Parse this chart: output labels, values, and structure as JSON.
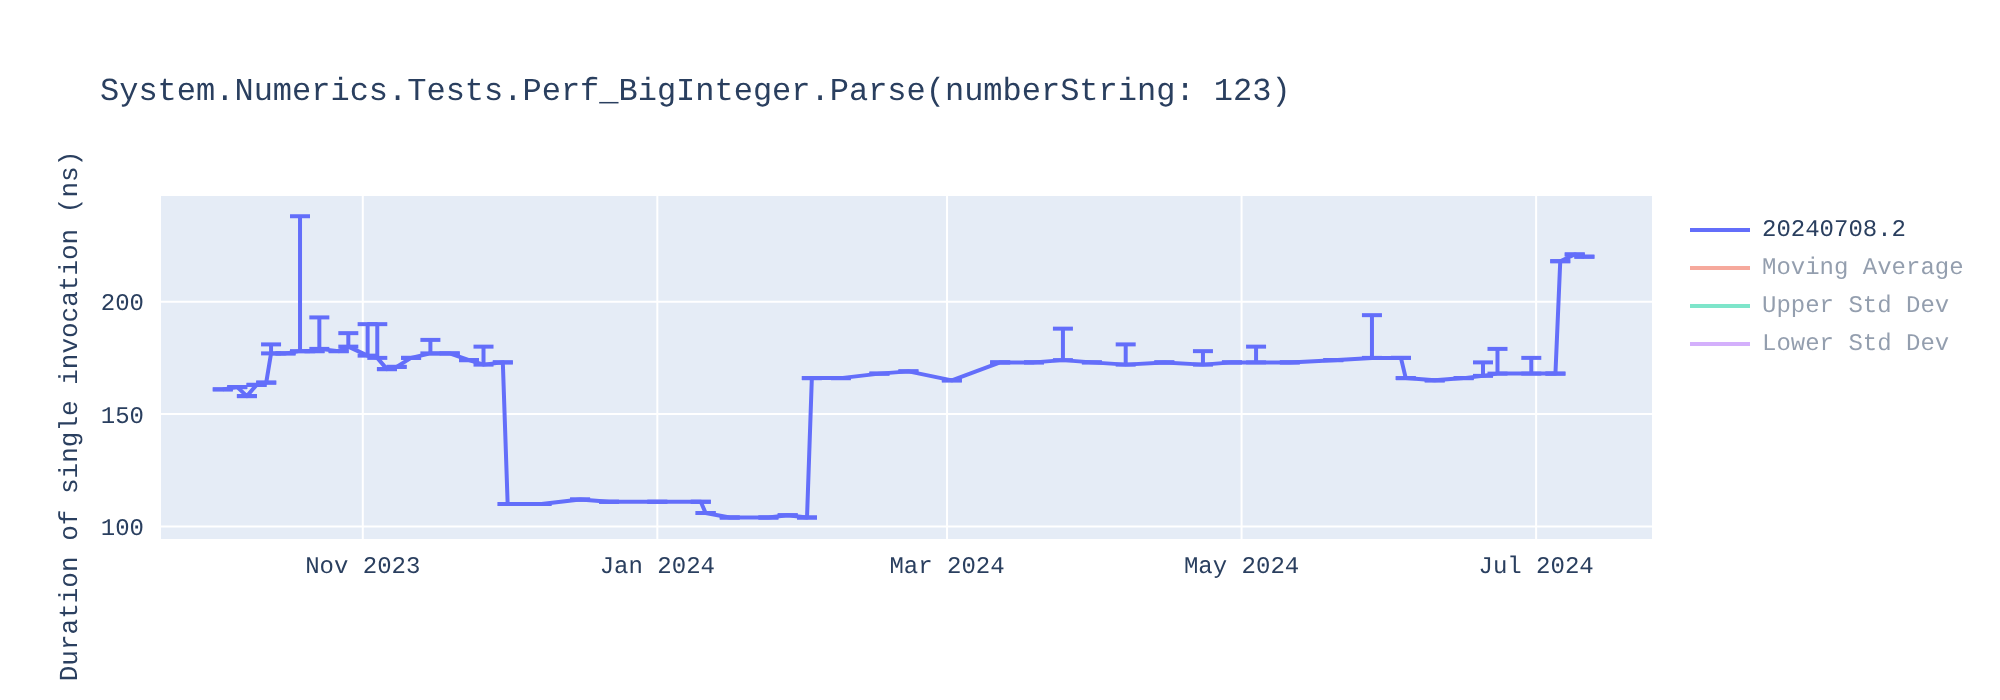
{
  "chart_data": {
    "type": "line",
    "title": "System.Numerics.Tests.Perf_BigInteger.Parse(numberString: 123)",
    "ylabel": "Duration of single invocation (ns)",
    "x": [
      "2023-10-03",
      "2023-10-06",
      "2023-10-08",
      "2023-10-10",
      "2023-10-12",
      "2023-10-13",
      "2023-10-16",
      "2023-10-19",
      "2023-10-22",
      "2023-10-23",
      "2023-10-27",
      "2023-10-29",
      "2023-11-02",
      "2023-11-04",
      "2023-11-06",
      "2023-11-08",
      "2023-11-11",
      "2023-11-15",
      "2023-11-19",
      "2023-11-23",
      "2023-11-26",
      "2023-11-30",
      "2023-12-01",
      "2023-12-08",
      "2023-12-16",
      "2023-12-22",
      "2024-01-01",
      "2024-01-10",
      "2024-01-11",
      "2024-01-16",
      "2024-01-24",
      "2024-01-28",
      "2024-02-01",
      "2024-02-02",
      "2024-02-08",
      "2024-02-16",
      "2024-02-22",
      "2024-03-02",
      "2024-03-12",
      "2024-03-19",
      "2024-03-25",
      "2024-03-31",
      "2024-04-07",
      "2024-04-15",
      "2024-04-23",
      "2024-04-29",
      "2024-05-04",
      "2024-05-11",
      "2024-05-20",
      "2024-05-28",
      "2024-06-03",
      "2024-06-04",
      "2024-06-10",
      "2024-06-16",
      "2024-06-20",
      "2024-06-23",
      "2024-06-30",
      "2024-07-05",
      "2024-07-06",
      "2024-07-09",
      "2024-07-11"
    ],
    "series": [
      {
        "name": "20240708.2",
        "color": "#636efa",
        "values": [
          161,
          162,
          158,
          163,
          164,
          177,
          177,
          178,
          178,
          179,
          178,
          180,
          176,
          175,
          170,
          171,
          175,
          177,
          177,
          174,
          172,
          173,
          110,
          110,
          112,
          111,
          111,
          111,
          106,
          104,
          104,
          105,
          104,
          166,
          166,
          168,
          169,
          165,
          173,
          173,
          174,
          173,
          172,
          173,
          172,
          173,
          173,
          173,
          174,
          175,
          175,
          166,
          165,
          166,
          167,
          168,
          168,
          168,
          218,
          221,
          220
        ],
        "errors": [
          null,
          null,
          null,
          null,
          null,
          [
            177,
            181
          ],
          null,
          [
            178,
            238
          ],
          null,
          [
            179,
            193
          ],
          null,
          [
            180,
            186
          ],
          [
            176,
            190
          ],
          [
            175,
            190
          ],
          null,
          null,
          null,
          [
            177,
            183
          ],
          null,
          null,
          [
            172,
            180
          ],
          null,
          null,
          null,
          null,
          null,
          null,
          null,
          null,
          null,
          null,
          null,
          null,
          null,
          null,
          null,
          null,
          null,
          null,
          null,
          [
            174,
            188
          ],
          null,
          [
            172,
            181
          ],
          null,
          [
            172,
            178
          ],
          null,
          [
            173,
            180
          ],
          null,
          null,
          [
            175,
            194
          ],
          null,
          null,
          null,
          null,
          [
            167,
            173
          ],
          [
            168,
            179
          ],
          [
            168,
            175
          ],
          null,
          null,
          null,
          null
        ]
      },
      {
        "name": "Moving Average",
        "color": "#ef553b",
        "values": [
          null,
          null,
          null,
          null,
          null,
          null,
          null,
          null,
          null,
          null,
          null,
          null,
          null,
          null,
          null,
          null,
          null,
          null,
          null,
          null,
          null,
          null,
          null,
          null,
          null,
          null,
          null,
          null,
          null,
          null,
          null,
          null,
          null,
          null,
          null,
          null,
          null,
          null,
          null,
          null,
          null,
          null,
          null,
          null,
          null,
          null,
          null,
          null,
          null,
          null,
          null,
          null,
          null,
          null,
          null,
          null,
          null,
          null,
          null,
          null,
          null
        ]
      },
      {
        "name": "Upper Std Dev",
        "color": "#00cc96",
        "values": [
          null,
          null,
          null,
          null,
          null,
          null,
          null,
          null,
          null,
          null,
          null,
          null,
          null,
          null,
          null,
          null,
          null,
          null,
          null,
          null,
          null,
          null,
          null,
          null,
          null,
          null,
          null,
          null,
          null,
          null,
          null,
          null,
          null,
          null,
          null,
          null,
          null,
          null,
          null,
          null,
          null,
          null,
          null,
          null,
          null,
          null,
          null,
          null,
          null,
          null,
          null,
          null,
          null,
          null,
          null,
          null,
          null,
          null,
          null,
          null,
          null
        ]
      },
      {
        "name": "Lower Std Dev",
        "color": "#ab63fa",
        "values": [
          null,
          null,
          null,
          null,
          null,
          null,
          null,
          null,
          null,
          null,
          null,
          null,
          null,
          null,
          null,
          null,
          null,
          null,
          null,
          null,
          null,
          null,
          null,
          null,
          null,
          null,
          null,
          null,
          null,
          null,
          null,
          null,
          null,
          null,
          null,
          null,
          null,
          null,
          null,
          null,
          null,
          null,
          null,
          null,
          null,
          null,
          null,
          null,
          null,
          null,
          null,
          null,
          null,
          null,
          null,
          null,
          null,
          null,
          null,
          null,
          null
        ]
      }
    ],
    "xlim": [
      "2023-09-20",
      "2024-07-25"
    ],
    "xticks": [
      {
        "value": "2023-11-01",
        "label": "Nov 2023"
      },
      {
        "value": "2024-01-01",
        "label": "Jan 2024"
      },
      {
        "value": "2024-03-01",
        "label": "Mar 2024"
      },
      {
        "value": "2024-05-01",
        "label": "May 2024"
      },
      {
        "value": "2024-07-01",
        "label": "Jul 2024"
      }
    ],
    "ylim": [
      94,
      247
    ],
    "yticks": [
      100,
      150,
      200
    ],
    "grid": true,
    "legend": "top right"
  }
}
